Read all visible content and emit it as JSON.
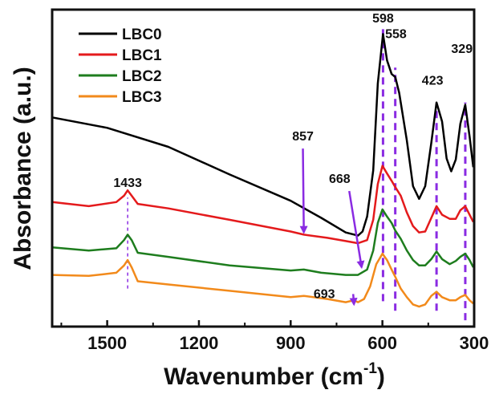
{
  "chart_data": {
    "type": "line",
    "xlabel": "Wavenumber (cm",
    "xlabel_sup": "-1",
    "xlabel_end": ")",
    "ylabel": "Absorbance (a.u.)",
    "xlim": [
      1680,
      300
    ],
    "x_reversed": true,
    "xticks": [
      1500,
      1200,
      900,
      600,
      300
    ],
    "xtick_labels": [
      "1500",
      "1200",
      "900",
      "600",
      "300"
    ],
    "y_ticks_shown": false,
    "legend_position": "top-left",
    "series": [
      {
        "name": "LBC0",
        "color": "#000000",
        "points": [
          [
            1680,
            0.66
          ],
          [
            1500,
            0.627
          ],
          [
            1300,
            0.567
          ],
          [
            1100,
            0.48
          ],
          [
            900,
            0.397
          ],
          [
            800,
            0.343
          ],
          [
            720,
            0.297
          ],
          [
            680,
            0.287
          ],
          [
            665,
            0.3
          ],
          [
            650,
            0.347
          ],
          [
            630,
            0.493
          ],
          [
            615,
            0.767
          ],
          [
            598,
            0.923
          ],
          [
            585,
            0.84
          ],
          [
            570,
            0.797
          ],
          [
            558,
            0.787
          ],
          [
            545,
            0.737
          ],
          [
            520,
            0.587
          ],
          [
            500,
            0.443
          ],
          [
            480,
            0.403
          ],
          [
            460,
            0.443
          ],
          [
            440,
            0.58
          ],
          [
            423,
            0.707
          ],
          [
            405,
            0.647
          ],
          [
            390,
            0.53
          ],
          [
            375,
            0.49
          ],
          [
            360,
            0.527
          ],
          [
            345,
            0.64
          ],
          [
            329,
            0.7
          ],
          [
            315,
            0.6
          ],
          [
            303,
            0.503
          ]
        ]
      },
      {
        "name": "LBC1",
        "color": "#e41a1c",
        "points": [
          [
            1680,
            0.393
          ],
          [
            1560,
            0.38
          ],
          [
            1470,
            0.393
          ],
          [
            1445,
            0.413
          ],
          [
            1433,
            0.43
          ],
          [
            1420,
            0.413
          ],
          [
            1400,
            0.387
          ],
          [
            1300,
            0.373
          ],
          [
            1100,
            0.337
          ],
          [
            900,
            0.3
          ],
          [
            857,
            0.29
          ],
          [
            780,
            0.28
          ],
          [
            720,
            0.27
          ],
          [
            680,
            0.263
          ],
          [
            650,
            0.273
          ],
          [
            630,
            0.337
          ],
          [
            615,
            0.45
          ],
          [
            600,
            0.507
          ],
          [
            585,
            0.483
          ],
          [
            570,
            0.46
          ],
          [
            558,
            0.44
          ],
          [
            540,
            0.413
          ],
          [
            520,
            0.36
          ],
          [
            500,
            0.317
          ],
          [
            480,
            0.297
          ],
          [
            460,
            0.3
          ],
          [
            440,
            0.343
          ],
          [
            423,
            0.38
          ],
          [
            405,
            0.353
          ],
          [
            380,
            0.34
          ],
          [
            360,
            0.34
          ],
          [
            345,
            0.367
          ],
          [
            329,
            0.38
          ],
          [
            315,
            0.353
          ],
          [
            303,
            0.33
          ]
        ]
      },
      {
        "name": "LBC2",
        "color": "#1e7d1e",
        "points": [
          [
            1680,
            0.25
          ],
          [
            1560,
            0.24
          ],
          [
            1470,
            0.247
          ],
          [
            1445,
            0.273
          ],
          [
            1433,
            0.29
          ],
          [
            1420,
            0.273
          ],
          [
            1400,
            0.233
          ],
          [
            1300,
            0.22
          ],
          [
            1100,
            0.193
          ],
          [
            900,
            0.177
          ],
          [
            857,
            0.18
          ],
          [
            800,
            0.17
          ],
          [
            720,
            0.163
          ],
          [
            680,
            0.163
          ],
          [
            650,
            0.18
          ],
          [
            630,
            0.24
          ],
          [
            615,
            0.327
          ],
          [
            600,
            0.37
          ],
          [
            585,
            0.347
          ],
          [
            570,
            0.327
          ],
          [
            558,
            0.303
          ],
          [
            540,
            0.277
          ],
          [
            520,
            0.24
          ],
          [
            500,
            0.21
          ],
          [
            480,
            0.193
          ],
          [
            460,
            0.193
          ],
          [
            440,
            0.213
          ],
          [
            423,
            0.237
          ],
          [
            405,
            0.213
          ],
          [
            380,
            0.197
          ],
          [
            360,
            0.207
          ],
          [
            345,
            0.22
          ],
          [
            329,
            0.23
          ],
          [
            315,
            0.21
          ],
          [
            303,
            0.187
          ]
        ]
      },
      {
        "name": "LBC3",
        "color": "#f28a1b",
        "points": [
          [
            1680,
            0.163
          ],
          [
            1560,
            0.16
          ],
          [
            1470,
            0.17
          ],
          [
            1445,
            0.193
          ],
          [
            1433,
            0.21
          ],
          [
            1420,
            0.187
          ],
          [
            1400,
            0.143
          ],
          [
            1300,
            0.133
          ],
          [
            1100,
            0.113
          ],
          [
            900,
            0.093
          ],
          [
            857,
            0.097
          ],
          [
            780,
            0.087
          ],
          [
            720,
            0.077
          ],
          [
            693,
            0.083
          ],
          [
            680,
            0.077
          ],
          [
            660,
            0.087
          ],
          [
            640,
            0.127
          ],
          [
            620,
            0.197
          ],
          [
            600,
            0.23
          ],
          [
            585,
            0.21
          ],
          [
            570,
            0.18
          ],
          [
            558,
            0.157
          ],
          [
            540,
            0.12
          ],
          [
            520,
            0.093
          ],
          [
            500,
            0.07
          ],
          [
            480,
            0.063
          ],
          [
            460,
            0.07
          ],
          [
            440,
            0.097
          ],
          [
            423,
            0.11
          ],
          [
            405,
            0.093
          ],
          [
            380,
            0.083
          ],
          [
            360,
            0.083
          ],
          [
            345,
            0.093
          ],
          [
            329,
            0.1
          ],
          [
            315,
            0.083
          ],
          [
            303,
            0.073
          ]
        ]
      }
    ],
    "reference_lines": [
      {
        "x": 1433,
        "y_from": 0.12,
        "y_to": 0.407
      },
      {
        "x": 598,
        "y_from": 0.08,
        "y_to": 0.943
      },
      {
        "x": 558,
        "y_from": 0.05,
        "y_to": 0.817
      },
      {
        "x": 423,
        "y_from": 0.05,
        "y_to": 0.703
      },
      {
        "x": 329,
        "y_from": 0.02,
        "y_to": 0.707
      }
    ],
    "annotations": [
      {
        "text": "1433",
        "x": 1433,
        "y": 0.44,
        "arrow": false
      },
      {
        "text": "598",
        "x": 598,
        "y": 0.96,
        "arrow": false
      },
      {
        "text": "558",
        "x": 556,
        "y": 0.91,
        "arrow": false
      },
      {
        "text": "423",
        "x": 436,
        "y": 0.763,
        "arrow": false
      },
      {
        "text": "329",
        "x": 340,
        "y": 0.863,
        "arrow": false
      },
      {
        "text": "857",
        "x": 860,
        "y": 0.587,
        "arrow": true,
        "tip_x": 857,
        "tip_y": 0.297
      },
      {
        "text": "668",
        "x": 740,
        "y": 0.453,
        "arrow": true,
        "tip_x": 668,
        "tip_y": 0.187
      },
      {
        "text": "693",
        "x": 790,
        "y": 0.09,
        "arrow": true,
        "tip_x": 693,
        "tip_y": 0.07
      }
    ],
    "colors": {
      "annotation": "#8a2be2",
      "axis": "#111111"
    }
  }
}
